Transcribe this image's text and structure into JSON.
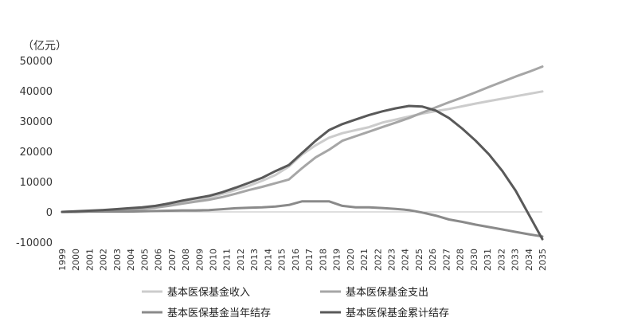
{
  "chart_data": {
    "type": "line",
    "ylabel": "（亿元）",
    "ylim": [
      -10000,
      50000
    ],
    "yticks": [
      -10000,
      0,
      10000,
      20000,
      30000,
      40000,
      50000
    ],
    "x": [
      "1999",
      "2000",
      "2001",
      "2002",
      "2003",
      "2004",
      "2005",
      "2006",
      "2007",
      "2008",
      "2009",
      "2010",
      "2011",
      "2012",
      "2013",
      "2014",
      "2015",
      "2016",
      "2017",
      "2018",
      "2019",
      "2020",
      "2021",
      "2022",
      "2023",
      "2024",
      "2025",
      "2026",
      "2027",
      "2028",
      "2029",
      "2030",
      "2031",
      "2032",
      "2033",
      "2034",
      "2035"
    ],
    "x_tick_labels": [
      "1999",
      "2000",
      "2001",
      "2002",
      "2003",
      "2004",
      "2005",
      "2006",
      "2007",
      "2008",
      "2009",
      "2010",
      "2011",
      "2012",
      "2013",
      "2014",
      "2015",
      "2016",
      "2017",
      "2018",
      "2019",
      "2020",
      "2021",
      "2022",
      "2023",
      "2024",
      "2025",
      "2026",
      "2027",
      "2028",
      "2030",
      "2031",
      "2032",
      "2033",
      "2034",
      "2035"
    ],
    "grid": false,
    "legend_position": "bottom",
    "series": [
      {
        "name": "基本医保基金收入",
        "color": "#cccccc",
        "values": [
          0,
          100,
          300,
          500,
          700,
          900,
          1200,
          1600,
          2300,
          3100,
          3900,
          4700,
          5900,
          7200,
          8600,
          10300,
          12200,
          15000,
          19000,
          22000,
          24500,
          26000,
          27000,
          28000,
          29500,
          30500,
          31500,
          32500,
          33300,
          34000,
          34900,
          35800,
          36600,
          37400,
          38200,
          39000,
          39800
        ]
      },
      {
        "name": "基本医保基金支出",
        "color": "#a6a6a6",
        "values": [
          0,
          100,
          200,
          400,
          600,
          800,
          1000,
          1400,
          2000,
          2700,
          3400,
          4000,
          4900,
          6000,
          7200,
          8300,
          9500,
          10700,
          14500,
          18000,
          20500,
          23500,
          25000,
          26500,
          28000,
          29500,
          31000,
          32800,
          34500,
          36200,
          37800,
          39500,
          41300,
          43000,
          44700,
          46300,
          48000
        ]
      },
      {
        "name": "基本医保基金当年结存",
        "color": "#8a8a8a",
        "values": [
          0,
          0,
          100,
          100,
          100,
          100,
          200,
          300,
          400,
          500,
          500,
          600,
          900,
          1200,
          1400,
          1500,
          1800,
          2300,
          3500,
          3500,
          3500,
          2000,
          1500,
          1500,
          1300,
          1000,
          600,
          -200,
          -1200,
          -2500,
          -3300,
          -4200,
          -5000,
          -5800,
          -6600,
          -7400,
          -8100
        ]
      },
      {
        "name": "基本医保基金累计结存",
        "color": "#595959",
        "values": [
          0,
          200,
          400,
          600,
          900,
          1200,
          1500,
          2000,
          2800,
          3700,
          4500,
          5300,
          6500,
          8000,
          9600,
          11300,
          13500,
          15500,
          19500,
          23500,
          27000,
          29000,
          30500,
          32000,
          33200,
          34200,
          35000,
          34800,
          33500,
          31000,
          27500,
          23500,
          19000,
          13500,
          7000,
          -1000,
          -9000
        ]
      }
    ]
  }
}
